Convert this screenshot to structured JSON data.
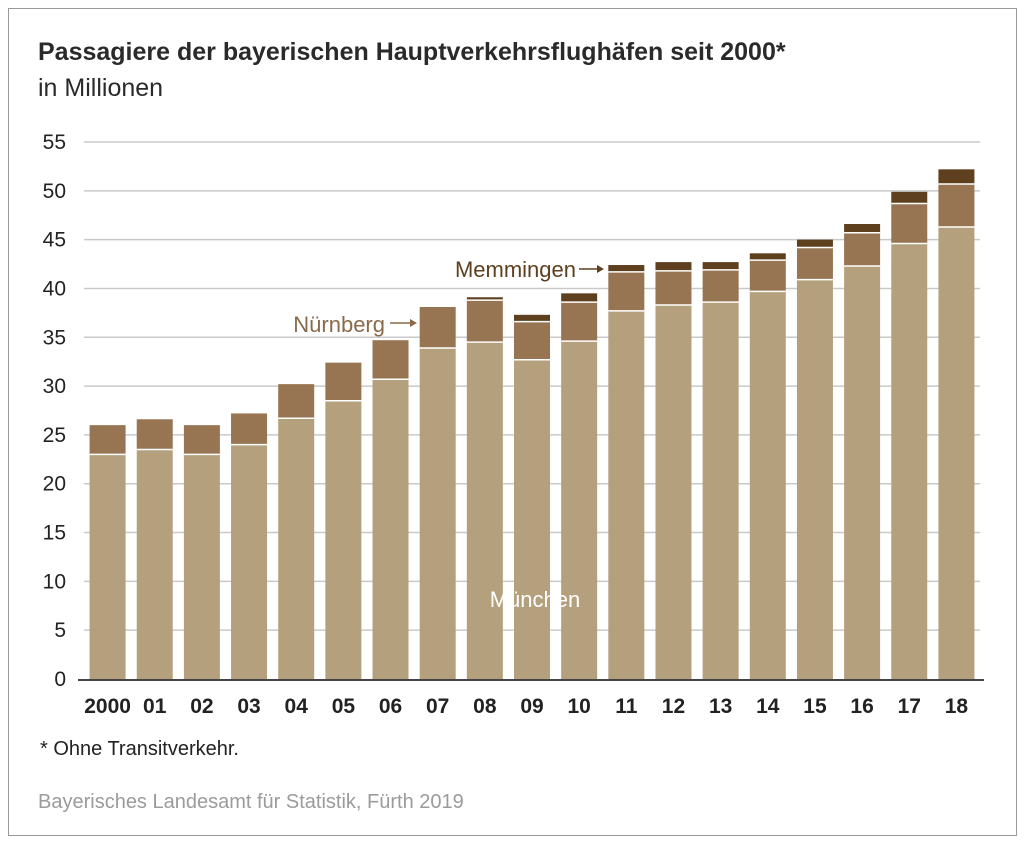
{
  "title": "Passagiere der bayerischen Hauptverkehrsflughäfen seit 2000*",
  "subtitle": "in Millionen",
  "footnote": "* Ohne Transitverkehr.",
  "source": "Bayerisches Landesamt für Statistik, Fürth 2019",
  "chart_data": {
    "type": "bar",
    "stacked": true,
    "categories": [
      "2000",
      "01",
      "02",
      "03",
      "04",
      "05",
      "06",
      "07",
      "08",
      "09",
      "10",
      "11",
      "12",
      "13",
      "14",
      "15",
      "16",
      "17",
      "18"
    ],
    "series": [
      {
        "name": "München",
        "color": "#b5a07d",
        "values": [
          23.0,
          23.5,
          23.0,
          24.0,
          26.7,
          28.5,
          30.7,
          33.9,
          34.5,
          32.7,
          34.6,
          37.7,
          38.3,
          38.6,
          39.7,
          40.9,
          42.3,
          44.6,
          46.3
        ]
      },
      {
        "name": "Nürnberg",
        "color": "#977452",
        "values": [
          3.0,
          3.1,
          3.0,
          3.2,
          3.5,
          3.9,
          4.0,
          4.2,
          4.3,
          3.9,
          4.0,
          4.0,
          3.5,
          3.3,
          3.2,
          3.3,
          3.4,
          4.1,
          4.4
        ]
      },
      {
        "name": "Memmingen",
        "color": "#5e401f",
        "values": [
          0,
          0,
          0,
          0,
          0,
          0,
          0,
          0,
          0.3,
          0.7,
          0.9,
          0.7,
          0.9,
          0.8,
          0.7,
          0.8,
          0.9,
          1.2,
          1.5
        ]
      }
    ],
    "ylim": [
      0,
      55
    ],
    "yticks": [
      0,
      5,
      10,
      15,
      20,
      25,
      30,
      35,
      40,
      45,
      50,
      55
    ],
    "grid": true,
    "labels": {
      "muenchen": "München",
      "nuernberg": "Nürnberg",
      "memmingen": "Memmingen"
    }
  }
}
